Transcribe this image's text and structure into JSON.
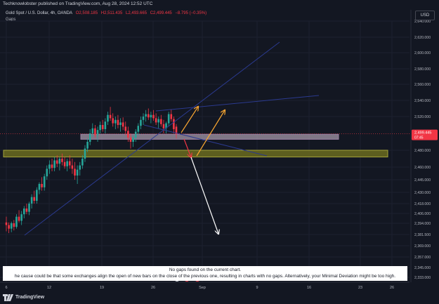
{
  "publisher": "Techknowlobster published on TradingView.com, Aug 28, 2024 12:52 UTC",
  "header": {
    "symbol": "Gold Spot / U.S. Dollar, 4h, OANDA",
    "open": "O2,508.185",
    "high": "H2,511.435",
    "low": "L2,493.665",
    "close": "C2,499.445",
    "change": "−8.795 (−0.35%)"
  },
  "indicator": "Gaps",
  "currency": "USD",
  "notice": {
    "line1": "No gaps found on the current chart.",
    "line2": "he cause could be that some exchanges align the open of new bars on the close of the previous one, resulting in charts with no gaps. Alternatively, your Minimal Deviation might be too high."
  },
  "brand": "TradingView",
  "colors": {
    "up": "#26a69a",
    "down": "#f23645",
    "background": "#131722",
    "zone_upper": "#9b7fa3",
    "zone_lower": "#a3a33a",
    "projection_up": "#f7a531",
    "projection_down": "#f23645",
    "projection_target": "#ffffff",
    "trendline": "#2962ff"
  },
  "chart_data": {
    "type": "candlestick",
    "symbol": "XAUUSD",
    "timeframe": "4h",
    "y_ticks": [
      "2,640.000",
      "2,620.000",
      "2,600.000",
      "2,580.000",
      "2,560.000",
      "2,540.000",
      "2,520.000",
      "2,480.000",
      "2,460.000",
      "2,445.000",
      "2,430.000",
      "2,418.000",
      "2,406.000",
      "2,394.000",
      "2,381.500",
      "2,369.000",
      "2,357.000",
      "2,345.000",
      "2,333.000"
    ],
    "x_ticks": [
      "6",
      "12",
      "19",
      "26",
      "Sep",
      "9",
      "16",
      "23",
      "26"
    ],
    "price_label": {
      "value": "2,499.445",
      "countdown": "07:45"
    },
    "ohlc_4h": [
      [
        2395,
        2402,
        2385,
        2392
      ],
      [
        2392,
        2395,
        2383,
        2388
      ],
      [
        2388,
        2396,
        2384,
        2394
      ],
      [
        2394,
        2398,
        2386,
        2390
      ],
      [
        2390,
        2405,
        2388,
        2402
      ],
      [
        2402,
        2410,
        2395,
        2397
      ],
      [
        2397,
        2409,
        2392,
        2405
      ],
      [
        2405,
        2415,
        2400,
        2412
      ],
      [
        2412,
        2418,
        2405,
        2408
      ],
      [
        2408,
        2420,
        2404,
        2418
      ],
      [
        2418,
        2428,
        2412,
        2425
      ],
      [
        2425,
        2432,
        2418,
        2421
      ],
      [
        2421,
        2436,
        2418,
        2433
      ],
      [
        2433,
        2442,
        2428,
        2440
      ],
      [
        2440,
        2448,
        2432,
        2436
      ],
      [
        2436,
        2452,
        2432,
        2449
      ],
      [
        2449,
        2462,
        2445,
        2458
      ],
      [
        2458,
        2468,
        2452,
        2463
      ],
      [
        2463,
        2470,
        2455,
        2459
      ],
      [
        2459,
        2472,
        2455,
        2468
      ],
      [
        2468,
        2474,
        2460,
        2464
      ],
      [
        2464,
        2472,
        2456,
        2470
      ],
      [
        2470,
        2476,
        2462,
        2466
      ],
      [
        2466,
        2472,
        2458,
        2461
      ],
      [
        2461,
        2470,
        2455,
        2467
      ],
      [
        2467,
        2474,
        2458,
        2462
      ],
      [
        2462,
        2470,
        2452,
        2458
      ],
      [
        2458,
        2466,
        2445,
        2450
      ],
      [
        2450,
        2462,
        2440,
        2457
      ],
      [
        2457,
        2466,
        2450,
        2462
      ],
      [
        2462,
        2474,
        2458,
        2470
      ],
      [
        2470,
        2486,
        2466,
        2482
      ],
      [
        2482,
        2494,
        2478,
        2490
      ],
      [
        2490,
        2505,
        2486,
        2500
      ],
      [
        2500,
        2512,
        2496,
        2506
      ],
      [
        2506,
        2510,
        2495,
        2498
      ],
      [
        2498,
        2508,
        2490,
        2504
      ],
      [
        2504,
        2514,
        2500,
        2510
      ],
      [
        2510,
        2516,
        2502,
        2505
      ],
      [
        2505,
        2518,
        2500,
        2514
      ],
      [
        2514,
        2526,
        2510,
        2522
      ],
      [
        2522,
        2532,
        2515,
        2518
      ],
      [
        2518,
        2524,
        2508,
        2512
      ],
      [
        2512,
        2520,
        2505,
        2516
      ],
      [
        2516,
        2522,
        2506,
        2510
      ],
      [
        2510,
        2518,
        2502,
        2513
      ],
      [
        2513,
        2519,
        2504,
        2508
      ],
      [
        2508,
        2514,
        2498,
        2503
      ],
      [
        2503,
        2508,
        2490,
        2495
      ],
      [
        2495,
        2500,
        2482,
        2490
      ],
      [
        2490,
        2498,
        2484,
        2495
      ],
      [
        2495,
        2505,
        2490,
        2502
      ],
      [
        2502,
        2512,
        2498,
        2509
      ],
      [
        2509,
        2520,
        2505,
        2516
      ],
      [
        2516,
        2524,
        2510,
        2520
      ],
      [
        2520,
        2528,
        2514,
        2523
      ],
      [
        2523,
        2530,
        2516,
        2519
      ],
      [
        2519,
        2526,
        2512,
        2522
      ],
      [
        2522,
        2528,
        2515,
        2518
      ],
      [
        2518,
        2524,
        2510,
        2513
      ],
      [
        2513,
        2520,
        2506,
        2517
      ],
      [
        2517,
        2522,
        2508,
        2511
      ],
      [
        2511,
        2516,
        2500,
        2506
      ],
      [
        2506,
        2514,
        2500,
        2512
      ],
      [
        2512,
        2526,
        2508,
        2523
      ],
      [
        2523,
        2529,
        2514,
        2517
      ],
      [
        2517,
        2520,
        2500,
        2505
      ],
      [
        2508,
        2511,
        2494,
        2499
      ]
    ],
    "zones": [
      {
        "from": 2493,
        "to": 2499
      },
      {
        "from": 2472,
        "to": 2480
      }
    ],
    "projections": [
      {
        "from": 2499,
        "to": 2478,
        "color": "down"
      },
      {
        "from": 2478,
        "to": 2530,
        "color": "up"
      },
      {
        "from": 2499,
        "to": 2532,
        "color": "up"
      },
      {
        "from": 2478,
        "to": 2390,
        "color": "target"
      }
    ]
  }
}
